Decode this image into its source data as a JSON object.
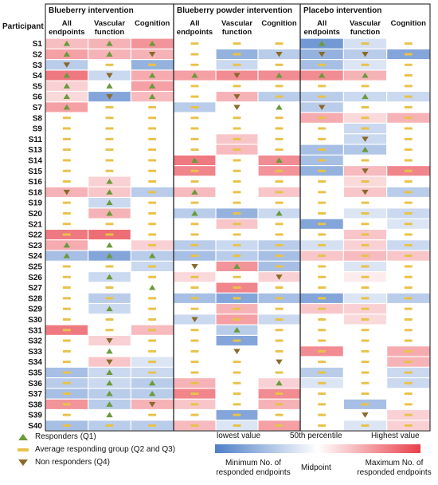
{
  "chart_data": {
    "type": "heatmap",
    "y_axis_title": "Participant",
    "participants": [
      "S1",
      "S2",
      "S3",
      "S4",
      "S5",
      "S6",
      "S7",
      "S8",
      "S9",
      "S11",
      "S13",
      "S14",
      "S15",
      "S16",
      "S18",
      "S19",
      "S20",
      "S21",
      "S22",
      "S23",
      "S24",
      "S25",
      "S26",
      "S27",
      "S28",
      "S29",
      "S30",
      "S31",
      "S32",
      "S33",
      "S34",
      "S35",
      "S36",
      "S37",
      "S38",
      "S39",
      "S40"
    ],
    "groups": [
      {
        "title": "Blueberry intervention",
        "columns": [
          "All endpoints",
          "Vascular function",
          "Cognition"
        ]
      },
      {
        "title": "Blueberry powder intervention",
        "columns": [
          "All endpoints",
          "Vascular function",
          "Cognition"
        ]
      },
      {
        "title": "Placebo intervention",
        "columns": [
          "All endpoints",
          "Vascular function",
          "Cognition"
        ]
      }
    ],
    "color_scale_values": "0 = lowest value / minimum No. of responded endpoints, 0.5 = 50th percentile / midpoint, 1 = highest value / maximum No. of responded endpoints",
    "symbol_codes": "R = responder (Q1), A = average responding group (Q2 and Q3), N = non responder (Q4)",
    "symbols": [
      "RRRAAARAA",
      "RRNAANNNA",
      "NAAAAAAAA",
      "RNRRNRRRA",
      "RRRAAAAAA",
      "RNRANAARA",
      "RAAANRNAA",
      "AAAAAAAAA",
      "AAAAAAAAA",
      "AAAAAAANA",
      "AAAAAAARA",
      "AAARARAAA",
      "AAAAAAANA",
      "ARAAAAAAA",
      "NRARAAANA",
      "ARAAAAAAA",
      "ARARARAAA",
      "AAAAAAAAA",
      "AAAAAAAAA",
      "RRAAAAAAA",
      "RRRAAAAAA",
      "AAANRAAAA",
      "ARAAANAAA",
      "AARAAAAAA",
      "AAAAAAAAA",
      "ARAAAAAAA",
      "AAANAAAAA",
      "AAAARAAAA",
      "ANAAAAAAA",
      "ARAANAAAA",
      "ANAAANAAA",
      "ARAAAAAAA",
      "ARRAARAAA",
      "ARRAAAAAA",
      "ARNAAAAAA",
      "ARAAAAANA",
      "AAAAAAAAA"
    ],
    "cell_values": [
      [
        0.67,
        0.7,
        0.78,
        0.5,
        0.5,
        0.5,
        0.1,
        0.38,
        0.5
      ],
      [
        0.75,
        0.7,
        0.7,
        0.5,
        0.2,
        0.3,
        0.2,
        0.3,
        0.15
      ],
      [
        0.3,
        0.5,
        0.2,
        0.5,
        0.35,
        0.5,
        0.25,
        0.4,
        0.5
      ],
      [
        0.85,
        0.35,
        0.72,
        0.75,
        0.8,
        0.8,
        0.8,
        0.7,
        0.5
      ],
      [
        0.62,
        0.5,
        0.75,
        0.5,
        0.5,
        0.5,
        0.5,
        0.5,
        0.5
      ],
      [
        0.6,
        0.15,
        0.68,
        0.5,
        0.7,
        0.3,
        0.3,
        0.35,
        0.35
      ],
      [
        0.75,
        0.5,
        0.5,
        0.3,
        0.5,
        0.5,
        0.3,
        0.5,
        0.5
      ],
      [
        0.5,
        0.5,
        0.5,
        0.5,
        0.5,
        0.5,
        0.72,
        0.6,
        0.7
      ],
      [
        0.5,
        0.5,
        0.5,
        0.5,
        0.5,
        0.5,
        0.5,
        0.35,
        0.5
      ],
      [
        0.5,
        0.5,
        0.5,
        0.5,
        0.65,
        0.5,
        0.5,
        0.35,
        0.5
      ],
      [
        0.5,
        0.5,
        0.5,
        0.5,
        0.68,
        0.5,
        0.25,
        0.28,
        0.5
      ],
      [
        0.5,
        0.5,
        0.5,
        0.85,
        0.5,
        0.8,
        0.25,
        0.5,
        0.5
      ],
      [
        0.5,
        0.5,
        0.5,
        0.82,
        0.5,
        0.78,
        0.2,
        0.68,
        0.82
      ],
      [
        0.5,
        0.62,
        0.5,
        0.5,
        0.5,
        0.5,
        0.5,
        0.6,
        0.5
      ],
      [
        0.7,
        0.65,
        0.3,
        0.68,
        0.5,
        0.65,
        0.5,
        0.65,
        0.3
      ],
      [
        0.5,
        0.35,
        0.5,
        0.5,
        0.5,
        0.5,
        0.5,
        0.5,
        0.5
      ],
      [
        0.5,
        0.7,
        0.5,
        0.3,
        0.2,
        0.35,
        0.5,
        0.4,
        0.35
      ],
      [
        0.5,
        0.5,
        0.5,
        0.5,
        0.65,
        0.5,
        0.15,
        0.5,
        0.4
      ],
      [
        0.85,
        0.88,
        0.5,
        0.5,
        0.5,
        0.5,
        0.5,
        0.65,
        0.5
      ],
      [
        0.72,
        0.5,
        0.62,
        0.3,
        0.35,
        0.3,
        0.38,
        0.62,
        0.35
      ],
      [
        0.25,
        0.15,
        0.3,
        0.25,
        0.3,
        0.25,
        0.65,
        0.68,
        0.65
      ],
      [
        0.5,
        0.5,
        0.35,
        0.5,
        0.78,
        0.25,
        0.5,
        0.4,
        0.5
      ],
      [
        0.5,
        0.35,
        0.5,
        0.6,
        0.5,
        0.62,
        0.5,
        0.55,
        0.5
      ],
      [
        0.5,
        0.5,
        0.5,
        0.5,
        0.82,
        0.5,
        0.5,
        0.5,
        0.5
      ],
      [
        0.5,
        0.3,
        0.5,
        0.25,
        0.15,
        0.25,
        0.15,
        0.4,
        0.3
      ],
      [
        0.5,
        0.35,
        0.5,
        0.5,
        0.7,
        0.5,
        0.65,
        0.62,
        0.5
      ],
      [
        0.5,
        0.5,
        0.5,
        0.35,
        0.75,
        0.35,
        0.5,
        0.6,
        0.5
      ],
      [
        0.85,
        0.5,
        0.68,
        0.5,
        0.3,
        0.5,
        0.5,
        0.5,
        0.5
      ],
      [
        0.5,
        0.62,
        0.5,
        0.5,
        0.15,
        0.5,
        0.5,
        0.5,
        0.5
      ],
      [
        0.5,
        0.5,
        0.5,
        0.5,
        0.5,
        0.5,
        0.8,
        0.5,
        0.72
      ],
      [
        0.5,
        0.65,
        0.4,
        0.5,
        0.5,
        0.5,
        0.5,
        0.5,
        0.7
      ],
      [
        0.25,
        0.35,
        0.35,
        0.5,
        0.5,
        0.5,
        0.3,
        0.5,
        0.35
      ],
      [
        0.3,
        0.35,
        0.3,
        0.7,
        0.5,
        0.62,
        0.4,
        0.5,
        0.35
      ],
      [
        0.25,
        0.3,
        0.3,
        0.82,
        0.5,
        0.8,
        0.5,
        0.5,
        0.5
      ],
      [
        0.78,
        0.3,
        0.7,
        0.65,
        0.5,
        0.7,
        0.5,
        0.25,
        0.5
      ],
      [
        0.5,
        0.5,
        0.5,
        0.5,
        0.15,
        0.5,
        0.5,
        0.5,
        0.62
      ],
      [
        0.25,
        0.3,
        0.3,
        0.68,
        0.4,
        0.75,
        0.5,
        0.4,
        0.62
      ]
    ],
    "legend": {
      "symbols": [
        {
          "label": "Responders (Q1)",
          "color": "#6a9a3a"
        },
        {
          "label": "Average responding group (Q2 and Q3)",
          "color": "#e8c24a"
        },
        {
          "label": "Non responders (Q4)",
          "color": "#8a6a2a"
        }
      ],
      "color_scale": {
        "low": "lowest value",
        "mid": "50th percentile",
        "high": "Highest value",
        "low2": "Minimum No. of responded endpoints",
        "mid2": "Midpoint",
        "high2": "Maximum No. of responded endpoints",
        "low_color": "#4f7fc8",
        "mid_color": "#ffffff",
        "high_color": "#e8404a"
      }
    }
  }
}
